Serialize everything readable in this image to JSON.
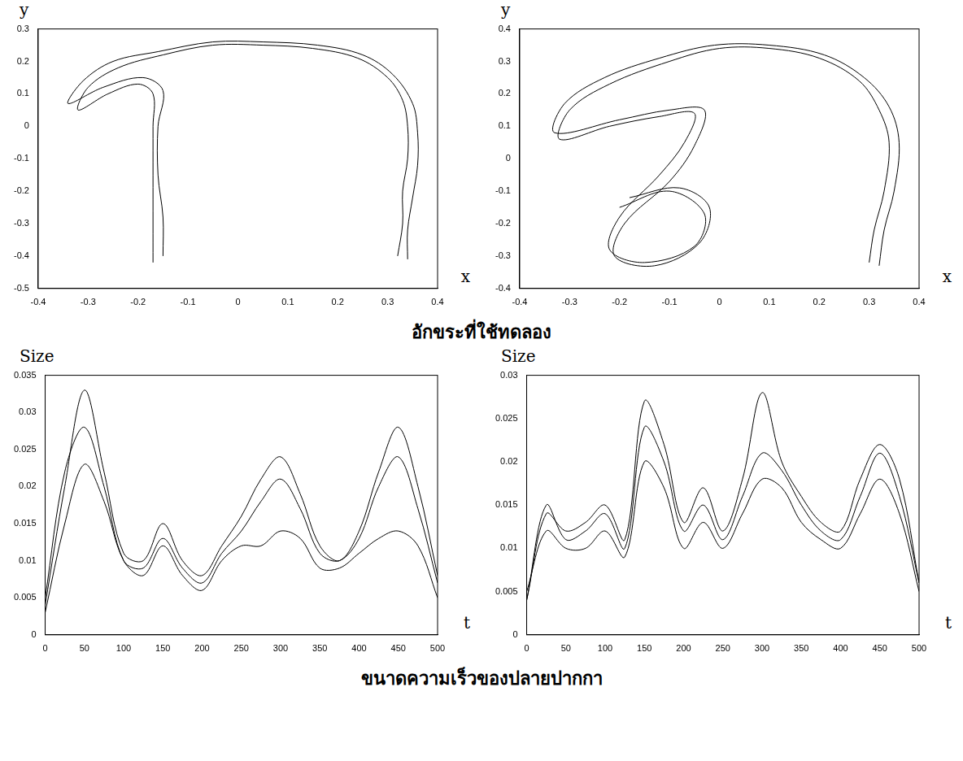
{
  "chart_data": [
    {
      "type": "line",
      "x_label": "x",
      "y_label": "y",
      "marker": "none",
      "line_style": "solid",
      "grid": false,
      "xlim": [
        -0.4,
        0.4
      ],
      "xticks": [
        -0.4,
        -0.3,
        -0.2,
        -0.1,
        0,
        0.1,
        0.2,
        0.3,
        0.4
      ],
      "ylim": [
        -0.5,
        0.3
      ],
      "yticks": [
        -0.5,
        -0.4,
        -0.3,
        -0.2,
        -0.1,
        0,
        0.1,
        0.2,
        0.3
      ],
      "series": [
        {
          "color": "#000000",
          "x": [
            -0.17,
            -0.17,
            -0.17,
            -0.17,
            -0.17,
            -0.2,
            -0.26,
            -0.32,
            -0.3,
            -0.24,
            -0.15,
            -0.05,
            0.05,
            0.15,
            0.24,
            0.3,
            0.33,
            0.34,
            0.34,
            0.33,
            0.33,
            0.32
          ],
          "values": [
            -0.42,
            -0.3,
            -0.15,
            0,
            0.1,
            0.13,
            0.1,
            0.05,
            0.12,
            0.18,
            0.22,
            0.25,
            0.25,
            0.24,
            0.21,
            0.15,
            0.08,
            0,
            -0.1,
            -0.2,
            -0.3,
            -0.4
          ]
        },
        {
          "color": "#000000",
          "x": [
            -0.15,
            -0.15,
            -0.16,
            -0.16,
            -0.15,
            -0.19,
            -0.27,
            -0.34,
            -0.31,
            -0.25,
            -0.16,
            -0.05,
            0.05,
            0.16,
            0.25,
            0.31,
            0.35,
            0.36,
            0.36,
            0.35,
            0.34,
            0.34
          ],
          "values": [
            -0.4,
            -0.28,
            -0.15,
            0,
            0.11,
            0.15,
            0.12,
            0.07,
            0.14,
            0.2,
            0.23,
            0.26,
            0.26,
            0.25,
            0.22,
            0.16,
            0.07,
            -0.02,
            -0.12,
            -0.22,
            -0.32,
            -0.41
          ]
        }
      ]
    },
    {
      "type": "line",
      "x_label": "x",
      "y_label": "y",
      "marker": "none",
      "line_style": "solid",
      "grid": false,
      "xlim": [
        -0.4,
        0.4
      ],
      "xticks": [
        -0.4,
        -0.3,
        -0.2,
        -0.1,
        0,
        0.1,
        0.2,
        0.3,
        0.4
      ],
      "ylim": [
        -0.4,
        0.4
      ],
      "yticks": [
        -0.4,
        -0.3,
        -0.2,
        -0.1,
        0,
        0.1,
        0.2,
        0.3,
        0.4
      ],
      "series": [
        {
          "color": "#000000",
          "x": [
            -0.2,
            -0.1,
            -0.03,
            -0.05,
            -0.15,
            -0.22,
            -0.2,
            -0.12,
            -0.07,
            -0.05,
            -0.12,
            -0.22,
            -0.32,
            -0.3,
            -0.22,
            -0.1,
            0,
            0.1,
            0.2,
            0.28,
            0.32,
            0.34,
            0.33,
            0.31,
            0.3
          ],
          "values": [
            -0.15,
            -0.1,
            -0.17,
            -0.27,
            -0.32,
            -0.28,
            -0.18,
            -0.05,
            0.05,
            0.14,
            0.13,
            0.1,
            0.06,
            0.15,
            0.23,
            0.3,
            0.34,
            0.34,
            0.31,
            0.24,
            0.15,
            0.05,
            -0.1,
            -0.22,
            -0.32
          ]
        },
        {
          "color": "#000000",
          "x": [
            -0.18,
            -0.08,
            -0.02,
            -0.04,
            -0.13,
            -0.21,
            -0.19,
            -0.1,
            -0.05,
            -0.03,
            -0.1,
            -0.2,
            -0.33,
            -0.31,
            -0.23,
            -0.12,
            -0.01,
            0.1,
            0.21,
            0.29,
            0.34,
            0.36,
            0.35,
            0.33,
            0.32
          ],
          "values": [
            -0.12,
            -0.09,
            -0.15,
            -0.26,
            -0.33,
            -0.3,
            -0.2,
            -0.07,
            0.04,
            0.15,
            0.15,
            0.12,
            0.08,
            0.17,
            0.25,
            0.31,
            0.35,
            0.35,
            0.32,
            0.25,
            0.16,
            0.05,
            -0.1,
            -0.22,
            -0.33
          ]
        }
      ]
    },
    {
      "type": "line",
      "x_label": "t",
      "y_label": "Size",
      "marker": "none",
      "line_style": "solid",
      "grid": false,
      "xlim": [
        0,
        500
      ],
      "xticks": [
        0,
        50,
        100,
        150,
        200,
        250,
        300,
        350,
        400,
        450,
        500
      ],
      "ylim": [
        0,
        0.035
      ],
      "yticks": [
        0,
        0.005,
        0.01,
        0.015,
        0.02,
        0.025,
        0.03,
        0.035
      ],
      "x": [
        0,
        25,
        50,
        75,
        100,
        125,
        150,
        175,
        200,
        225,
        250,
        275,
        300,
        325,
        350,
        375,
        400,
        425,
        450,
        475,
        500
      ],
      "series": [
        {
          "color": "#000000",
          "values": [
            0.004,
            0.02,
            0.033,
            0.022,
            0.011,
            0.01,
            0.015,
            0.01,
            0.008,
            0.012,
            0.016,
            0.021,
            0.024,
            0.019,
            0.012,
            0.01,
            0.014,
            0.022,
            0.028,
            0.02,
            0.008
          ]
        },
        {
          "color": "#000000",
          "values": [
            0.005,
            0.022,
            0.028,
            0.02,
            0.01,
            0.009,
            0.013,
            0.009,
            0.007,
            0.011,
            0.014,
            0.018,
            0.021,
            0.017,
            0.011,
            0.01,
            0.013,
            0.02,
            0.024,
            0.017,
            0.007
          ]
        },
        {
          "color": "#000000",
          "values": [
            0.003,
            0.015,
            0.023,
            0.018,
            0.01,
            0.008,
            0.012,
            0.008,
            0.006,
            0.01,
            0.012,
            0.012,
            0.014,
            0.013,
            0.009,
            0.009,
            0.011,
            0.013,
            0.014,
            0.012,
            0.005
          ]
        }
      ]
    },
    {
      "type": "line",
      "x_label": "t",
      "y_label": "Size",
      "marker": "none",
      "line_style": "solid",
      "grid": false,
      "xlim": [
        0,
        500
      ],
      "xticks": [
        0,
        50,
        100,
        150,
        200,
        250,
        300,
        350,
        400,
        450,
        500
      ],
      "ylim": [
        0,
        0.03
      ],
      "yticks": [
        0,
        0.005,
        0.01,
        0.015,
        0.02,
        0.025,
        0.03
      ],
      "x": [
        0,
        25,
        50,
        75,
        100,
        125,
        150,
        175,
        200,
        225,
        250,
        275,
        300,
        325,
        350,
        375,
        400,
        425,
        450,
        475,
        500
      ],
      "series": [
        {
          "color": "#000000",
          "values": [
            0.004,
            0.015,
            0.011,
            0.012,
            0.014,
            0.01,
            0.024,
            0.02,
            0.012,
            0.015,
            0.011,
            0.016,
            0.021,
            0.019,
            0.015,
            0.012,
            0.011,
            0.016,
            0.021,
            0.016,
            0.006
          ]
        },
        {
          "color": "#000000",
          "values": [
            0.005,
            0.012,
            0.01,
            0.01,
            0.012,
            0.009,
            0.02,
            0.017,
            0.01,
            0.013,
            0.01,
            0.014,
            0.018,
            0.017,
            0.013,
            0.011,
            0.01,
            0.014,
            0.018,
            0.014,
            0.005
          ]
        },
        {
          "color": "#000000",
          "values": [
            0.004,
            0.014,
            0.012,
            0.013,
            0.015,
            0.011,
            0.027,
            0.022,
            0.013,
            0.017,
            0.012,
            0.018,
            0.028,
            0.02,
            0.016,
            0.013,
            0.012,
            0.018,
            0.022,
            0.018,
            0.006
          ]
        }
      ]
    }
  ],
  "figure_captions": [
    "อักขระที่ใช้ทดลอง",
    "ขนาดความเร็วของปลายปากกา"
  ]
}
